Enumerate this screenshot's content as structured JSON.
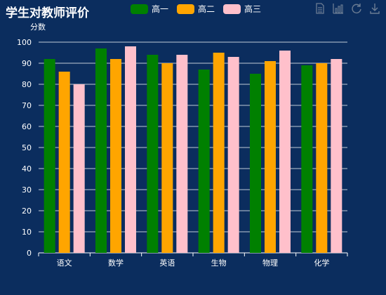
{
  "chart_data": {
    "type": "bar",
    "title": "学生对教师评价",
    "ylabel": "分数",
    "xlabel": "",
    "ylim": [
      0,
      100
    ],
    "yticks": [
      0,
      10,
      20,
      30,
      40,
      50,
      60,
      70,
      80,
      90,
      100
    ],
    "categories": [
      "语文",
      "数学",
      "英语",
      "生物",
      "物理",
      "化学"
    ],
    "series": [
      {
        "name": "高一",
        "color": "#008000",
        "values": [
          92,
          97,
          94,
          87,
          85,
          89
        ]
      },
      {
        "name": "高二",
        "color": "#ffa500",
        "values": [
          86,
          92,
          90,
          95,
          91,
          90
        ]
      },
      {
        "name": "高三",
        "color": "#ffc0cb",
        "values": [
          80,
          98,
          94,
          93,
          96,
          92
        ]
      }
    ],
    "grid": true,
    "legend_position": "top"
  },
  "toolbox": [
    {
      "icon": "data-view-icon"
    },
    {
      "icon": "bar-chart-icon"
    },
    {
      "icon": "refresh-icon"
    },
    {
      "icon": "download-icon"
    }
  ]
}
